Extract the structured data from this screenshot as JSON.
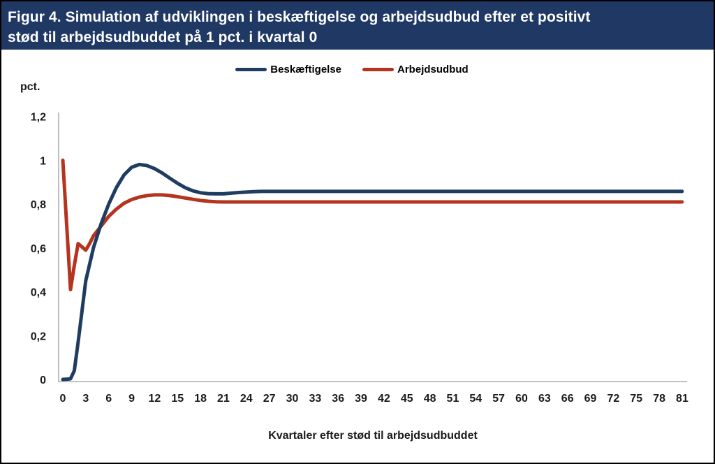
{
  "figure": {
    "title_line1": "Figur 4. Simulation af udviklingen i beskæftigelse og arbejdsudbud efter et positivt",
    "title_line2": "stød til arbejdsudbuddet på 1 pct. i kvartal 0",
    "titlebar_bg": "#1f3864",
    "border_color": "#000000"
  },
  "chart_data": {
    "type": "line",
    "title": "Figur 4. Simulation af udviklingen i beskæftigelse og arbejdsudbud efter et positivt stød til arbejdsudbuddet på 1 pct. i kvartal 0",
    "xlabel": "Kvartaler efter stød til arbejdsudbuddet",
    "ylabel": "pct.",
    "xlim": [
      0,
      81
    ],
    "ylim": [
      0,
      1.2
    ],
    "grid": false,
    "legend_position": "top-center",
    "axis_color": "#bfbfbf",
    "xtick_values": [
      0,
      3,
      6,
      9,
      12,
      15,
      18,
      21,
      24,
      27,
      30,
      33,
      36,
      39,
      42,
      45,
      48,
      51,
      54,
      57,
      60,
      63,
      66,
      69,
      72,
      75,
      78,
      81
    ],
    "ytick_values": [
      0,
      0.2,
      0.4,
      0.6,
      0.8,
      1,
      1.2
    ],
    "ytick_labels": [
      "0",
      "0,2",
      "0,4",
      "0,6",
      "0,8",
      "1",
      "1,2"
    ],
    "series": [
      {
        "name": "Beskæftigelse",
        "id": "beskaeftigelse-line",
        "color": "#1f3c61",
        "points": [
          [
            0,
            0
          ],
          [
            1,
            0.003
          ],
          [
            1.5,
            0.04
          ],
          [
            2,
            0.17
          ],
          [
            3,
            0.45
          ],
          [
            4,
            0.6
          ],
          [
            5,
            0.71
          ],
          [
            6,
            0.8
          ],
          [
            7,
            0.875
          ],
          [
            8,
            0.933
          ],
          [
            9,
            0.968
          ],
          [
            10,
            0.981
          ],
          [
            11,
            0.976
          ],
          [
            12,
            0.962
          ],
          [
            13,
            0.942
          ],
          [
            14,
            0.918
          ],
          [
            15,
            0.895
          ],
          [
            16,
            0.875
          ],
          [
            17,
            0.861
          ],
          [
            18,
            0.852
          ],
          [
            19,
            0.848
          ],
          [
            20,
            0.847
          ],
          [
            21,
            0.847
          ],
          [
            22,
            0.85
          ],
          [
            23,
            0.853
          ],
          [
            24,
            0.855
          ],
          [
            25,
            0.857
          ],
          [
            26,
            0.858
          ],
          [
            27,
            0.858
          ],
          [
            30,
            0.858
          ],
          [
            40,
            0.858
          ],
          [
            60,
            0.858
          ],
          [
            81,
            0.858
          ]
        ]
      },
      {
        "name": "Arbejdsudbud",
        "id": "arbejdsudbud-line",
        "color": "#b5341f",
        "points": [
          [
            0,
            1.0
          ],
          [
            1,
            0.41
          ],
          [
            1.5,
            0.52
          ],
          [
            2,
            0.62
          ],
          [
            2.5,
            0.605
          ],
          [
            3,
            0.59
          ],
          [
            3.5,
            0.62
          ],
          [
            4,
            0.655
          ],
          [
            5,
            0.7
          ],
          [
            6,
            0.744
          ],
          [
            7,
            0.777
          ],
          [
            8,
            0.804
          ],
          [
            9,
            0.821
          ],
          [
            10,
            0.832
          ],
          [
            11,
            0.839
          ],
          [
            12,
            0.842
          ],
          [
            13,
            0.842
          ],
          [
            14,
            0.839
          ],
          [
            15,
            0.834
          ],
          [
            16,
            0.828
          ],
          [
            17,
            0.822
          ],
          [
            18,
            0.817
          ],
          [
            19,
            0.813
          ],
          [
            20,
            0.811
          ],
          [
            21,
            0.81
          ],
          [
            22,
            0.81
          ],
          [
            24,
            0.81
          ],
          [
            27,
            0.81
          ],
          [
            30,
            0.81
          ],
          [
            40,
            0.81
          ],
          [
            60,
            0.81
          ],
          [
            81,
            0.81
          ]
        ]
      }
    ]
  }
}
